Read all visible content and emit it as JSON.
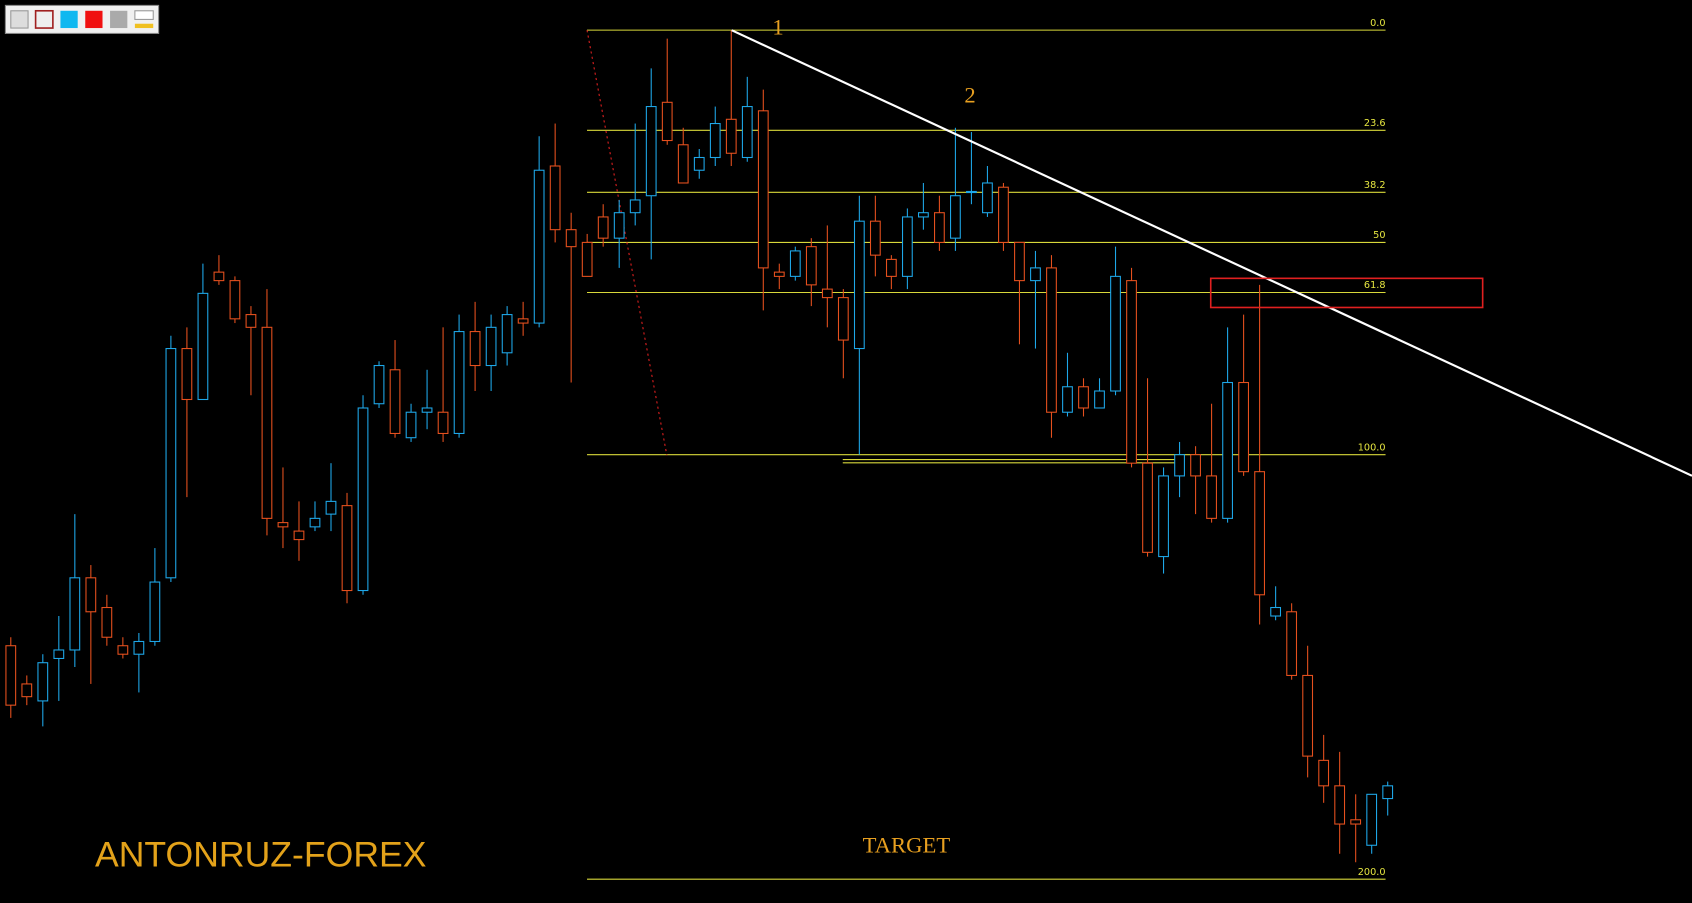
{
  "chart_data": {
    "type": "candlestick",
    "ylim": [
      -7.1,
      205.6
    ],
    "yticks": [
      {
        "value": 0,
        "label": "0.0"
      },
      23.6,
      38.2,
      50,
      61.8,
      {
        "value": 100,
        "label": "100.0"
      },
      {
        "value": 200,
        "label": "200.0"
      }
    ],
    "grid": true,
    "grid_color": "#d8d83a",
    "up_color": "#1ea7e8",
    "down_color": "#e5501e",
    "annotations": [
      "1",
      "2",
      "TARGET"
    ],
    "watermark": "ANTONRUZ-FOREX",
    "ohlc": [
      [
        145,
        143,
        162,
        159
      ],
      [
        154,
        152,
        159,
        157
      ],
      [
        158,
        147,
        164,
        149
      ],
      [
        148,
        138,
        158,
        146
      ],
      [
        146,
        114,
        150,
        129
      ],
      [
        129,
        126,
        154,
        137
      ],
      [
        136,
        133,
        145,
        143
      ],
      [
        145,
        143,
        148,
        147
      ],
      [
        147,
        142,
        156,
        144
      ],
      [
        144,
        122,
        145,
        130
      ],
      [
        129,
        72,
        130,
        75
      ],
      [
        75,
        70,
        110,
        87
      ],
      [
        87,
        55,
        87,
        62
      ],
      [
        57,
        53,
        60,
        59
      ],
      [
        59,
        58,
        69,
        68
      ],
      [
        67,
        65,
        86,
        70
      ],
      [
        70,
        61,
        119,
        115
      ],
      [
        116,
        103,
        122,
        117
      ],
      [
        118,
        111,
        125,
        120
      ],
      [
        117,
        111,
        118,
        115
      ],
      [
        114,
        102,
        118,
        111
      ],
      [
        112,
        109,
        135,
        132
      ],
      [
        132,
        86,
        133,
        89
      ],
      [
        88,
        78,
        89,
        79
      ],
      [
        80,
        73,
        96,
        95
      ],
      [
        96,
        88,
        97,
        90
      ],
      [
        90,
        80,
        94,
        89
      ],
      [
        90,
        70,
        97,
        95
      ],
      [
        95,
        67,
        96,
        71
      ],
      [
        71,
        64,
        85,
        79
      ],
      [
        79,
        67,
        85,
        70
      ],
      [
        76,
        65,
        79,
        67
      ],
      [
        68,
        64,
        72,
        69
      ],
      [
        69,
        25,
        70,
        33
      ],
      [
        32,
        22,
        50,
        47
      ],
      [
        47,
        43,
        83,
        51
      ],
      [
        50,
        48,
        58,
        58
      ],
      [
        44,
        41,
        51,
        49
      ],
      [
        49,
        40,
        56,
        43
      ],
      [
        43,
        22,
        46,
        40
      ],
      [
        39,
        9,
        54,
        18
      ],
      [
        17,
        2,
        27,
        26
      ],
      [
        27,
        23,
        36,
        36
      ],
      [
        33,
        28,
        35,
        30
      ],
      [
        30,
        18,
        32,
        22
      ],
      [
        21,
        0,
        32,
        29
      ],
      [
        30,
        11,
        31,
        18
      ],
      [
        19,
        14,
        66,
        56
      ],
      [
        57,
        55,
        61,
        58
      ],
      [
        58,
        51,
        59,
        52
      ],
      [
        51,
        49,
        65,
        60
      ],
      [
        61,
        46,
        70,
        63
      ],
      [
        63,
        61,
        82,
        73
      ],
      [
        75,
        39,
        100,
        45
      ],
      [
        45,
        39,
        58,
        53
      ],
      [
        54,
        53,
        61,
        58
      ],
      [
        58,
        42,
        61,
        44
      ],
      [
        44,
        36,
        47,
        43
      ],
      [
        43,
        39,
        52,
        50
      ],
      [
        49,
        23,
        52,
        39
      ],
      [
        38,
        24,
        41,
        38
      ],
      [
        43,
        32,
        44,
        36
      ],
      [
        37,
        36,
        52,
        50
      ],
      [
        50,
        50,
        74,
        59
      ],
      [
        59,
        52,
        75,
        56
      ],
      [
        56,
        53,
        96,
        90
      ],
      [
        90,
        76,
        91,
        84
      ],
      [
        84,
        82,
        91,
        89
      ],
      [
        89,
        82,
        89,
        85
      ],
      [
        85,
        51,
        86,
        58
      ],
      [
        59,
        56,
        103,
        102
      ],
      [
        102,
        82,
        124,
        123
      ],
      [
        124,
        103,
        128,
        105
      ],
      [
        105,
        97,
        110,
        100
      ],
      [
        100,
        98,
        114,
        105
      ],
      [
        105,
        88,
        116,
        115
      ],
      [
        115,
        70,
        116,
        83
      ],
      [
        83,
        67,
        105,
        104
      ],
      [
        104,
        60,
        140,
        133
      ],
      [
        138,
        131,
        139,
        136
      ],
      [
        137,
        135,
        153,
        152
      ],
      [
        152,
        145,
        176,
        171
      ],
      [
        172,
        166,
        182,
        178
      ],
      [
        178,
        170,
        194,
        187
      ],
      [
        186,
        180,
        196,
        187
      ],
      [
        192,
        180,
        194,
        180
      ],
      [
        181,
        177,
        185,
        178
      ]
    ]
  }
}
